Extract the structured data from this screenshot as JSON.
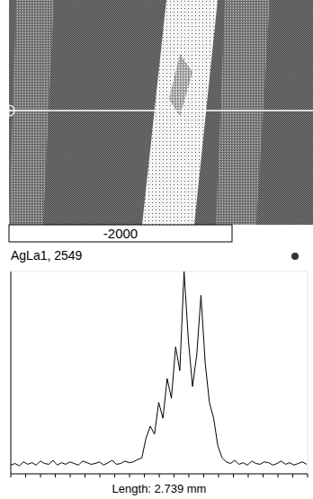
{
  "micrograph": {
    "scale_label": "-2000"
  },
  "chart_data": {
    "type": "line",
    "title": "AgLa1, 2549",
    "x_label": "Length: 2.739 mm",
    "x": [
      0,
      0.039,
      0.078,
      0.117,
      0.156,
      0.195,
      0.234,
      0.273,
      0.312,
      0.351,
      0.39,
      0.429,
      0.468,
      0.507,
      0.546,
      0.585,
      0.624,
      0.663,
      0.702,
      0.741,
      0.78,
      0.819,
      0.858,
      0.897,
      0.936,
      0.975,
      1.014,
      1.053,
      1.092,
      1.131,
      1.17,
      1.209,
      1.248,
      1.287,
      1.326,
      1.365,
      1.404,
      1.443,
      1.482,
      1.521,
      1.56,
      1.599,
      1.638,
      1.677,
      1.716,
      1.755,
      1.794,
      1.833,
      1.872,
      1.911,
      1.95,
      1.989,
      2.028,
      2.067,
      2.106,
      2.145,
      2.184,
      2.223,
      2.262,
      2.301,
      2.34,
      2.379,
      2.418,
      2.457,
      2.496,
      2.535,
      2.574,
      2.613,
      2.652,
      2.691,
      2.73
    ],
    "values": [
      110,
      130,
      100,
      150,
      120,
      140,
      110,
      160,
      130,
      120,
      170,
      110,
      140,
      120,
      150,
      130,
      110,
      160,
      140,
      120,
      130,
      150,
      110,
      140,
      170,
      120,
      130,
      160,
      140,
      150,
      180,
      200,
      450,
      600,
      500,
      900,
      700,
      1200,
      950,
      1600,
      1300,
      2549,
      1700,
      1100,
      1500,
      2250,
      1400,
      900,
      700,
      350,
      200,
      150,
      130,
      170,
      120,
      140,
      110,
      160,
      130,
      120,
      150,
      140,
      110,
      130,
      160,
      120,
      140,
      110,
      130,
      150,
      120
    ],
    "color": "#000000",
    "xlim": [
      0,
      2.739
    ],
    "xticks": [
      0,
      0.137,
      0.274,
      0.411,
      0.548,
      0.685,
      0.822,
      0.959,
      1.096,
      1.233,
      1.37,
      1.506,
      1.643,
      1.78,
      1.917,
      2.054,
      2.191,
      2.328,
      2.465,
      2.602,
      2.739
    ],
    "ylim": [
      0,
      2549
    ],
    "tick_labels": false
  }
}
